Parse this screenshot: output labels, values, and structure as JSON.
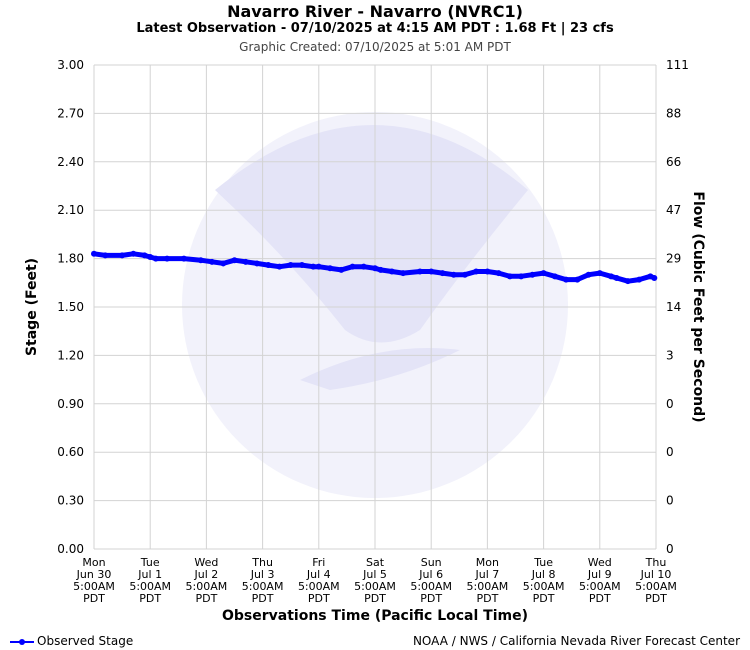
{
  "header": {
    "title": "Navarro River - Navarro (NVRC1)",
    "subtitle": "Latest Observation - 07/10/2025 at 4:15 AM PDT : 1.68 Ft | 23 cfs",
    "created": "Graphic Created: 07/10/2025 at 5:01 AM PDT"
  },
  "colors": {
    "series": "#0000ff",
    "grid": "#d3d3d3",
    "watermark": "#e4e4f7"
  },
  "footer": {
    "legend_label": "Observed Stage",
    "credit": "NOAA / NWS / California Nevada River Forecast Center"
  },
  "chart_data": {
    "type": "line",
    "xlabel": "Observations Time (Pacific Local Time)",
    "ylabel": "Stage (Feet)",
    "y2label": "Flow (Cubic Feet per Second)",
    "ylim": [
      0,
      3.0
    ],
    "xlim": [
      0,
      10
    ],
    "grid": true,
    "legend_position": "bottom-left",
    "y_ticks": [
      "0.00",
      "0.30",
      "0.60",
      "0.90",
      "1.20",
      "1.50",
      "1.80",
      "2.10",
      "2.40",
      "2.70",
      "3.00"
    ],
    "y2_ticks": [
      "0",
      "0",
      "0",
      "0",
      "3",
      "14",
      "29",
      "47",
      "66",
      "88",
      "111"
    ],
    "x_ticks": [
      [
        "Mon",
        "Jun 30",
        "5:00AM",
        "PDT"
      ],
      [
        "Tue",
        "Jul 1",
        "5:00AM",
        "PDT"
      ],
      [
        "Wed",
        "Jul 2",
        "5:00AM",
        "PDT"
      ],
      [
        "Thu",
        "Jul 3",
        "5:00AM",
        "PDT"
      ],
      [
        "Fri",
        "Jul 4",
        "5:00AM",
        "PDT"
      ],
      [
        "Sat",
        "Jul 5",
        "5:00AM",
        "PDT"
      ],
      [
        "Sun",
        "Jul 6",
        "5:00AM",
        "PDT"
      ],
      [
        "Mon",
        "Jul 7",
        "5:00AM",
        "PDT"
      ],
      [
        "Tue",
        "Jul 8",
        "5:00AM",
        "PDT"
      ],
      [
        "Wed",
        "Jul 9",
        "5:00AM",
        "PDT"
      ],
      [
        "Thu",
        "Jul 10",
        "5:00AM",
        "PDT"
      ]
    ],
    "series": [
      {
        "name": "Observed Stage",
        "x": [
          0,
          0.2,
          0.5,
          0.7,
          0.9,
          1.0,
          1.1,
          1.3,
          1.6,
          1.9,
          2.1,
          2.3,
          2.5,
          2.7,
          2.9,
          3.1,
          3.3,
          3.5,
          3.7,
          3.9,
          4.0,
          4.2,
          4.4,
          4.6,
          4.8,
          5.0,
          5.1,
          5.3,
          5.5,
          5.8,
          6.0,
          6.2,
          6.4,
          6.6,
          6.8,
          7.0,
          7.2,
          7.4,
          7.6,
          7.8,
          8.0,
          8.2,
          8.4,
          8.6,
          8.8,
          9.0,
          9.2,
          9.3,
          9.5,
          9.7,
          9.9,
          9.97
        ],
        "y": [
          1.83,
          1.82,
          1.82,
          1.83,
          1.82,
          1.81,
          1.8,
          1.8,
          1.8,
          1.79,
          1.78,
          1.77,
          1.79,
          1.78,
          1.77,
          1.76,
          1.75,
          1.76,
          1.76,
          1.75,
          1.75,
          1.74,
          1.73,
          1.75,
          1.75,
          1.74,
          1.73,
          1.72,
          1.71,
          1.72,
          1.72,
          1.71,
          1.7,
          1.7,
          1.72,
          1.72,
          1.71,
          1.69,
          1.69,
          1.7,
          1.71,
          1.69,
          1.67,
          1.67,
          1.7,
          1.71,
          1.69,
          1.68,
          1.66,
          1.67,
          1.69,
          1.68
        ]
      }
    ]
  }
}
